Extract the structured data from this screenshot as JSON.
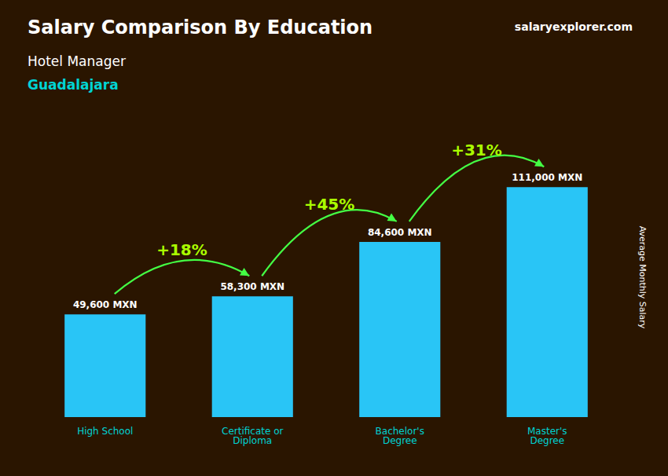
{
  "chart_data": {
    "type": "bar",
    "title": "Salary Comparison By Education",
    "subtitle": [
      "Hotel Manager",
      "Guadalajara"
    ],
    "ylabel": "Average Monthly Salary",
    "categories": [
      "High School",
      "Certificate or\nDiploma",
      "Bachelor's\nDegree",
      "Master's\nDegree"
    ],
    "values": [
      49600,
      58300,
      84600,
      111000
    ],
    "value_labels": [
      "49,600 MXN",
      "58,300 MXN",
      "84,600 MXN",
      "111,000 MXN"
    ],
    "data_labels": true,
    "color": "#29C5F6",
    "annotations": [
      "+18%",
      "+45%",
      "+31%",
      "salaryexplorer.com"
    ],
    "ylim": [
      0,
      135000
    ],
    "tick_labels": "x",
    "grid": false
  }
}
